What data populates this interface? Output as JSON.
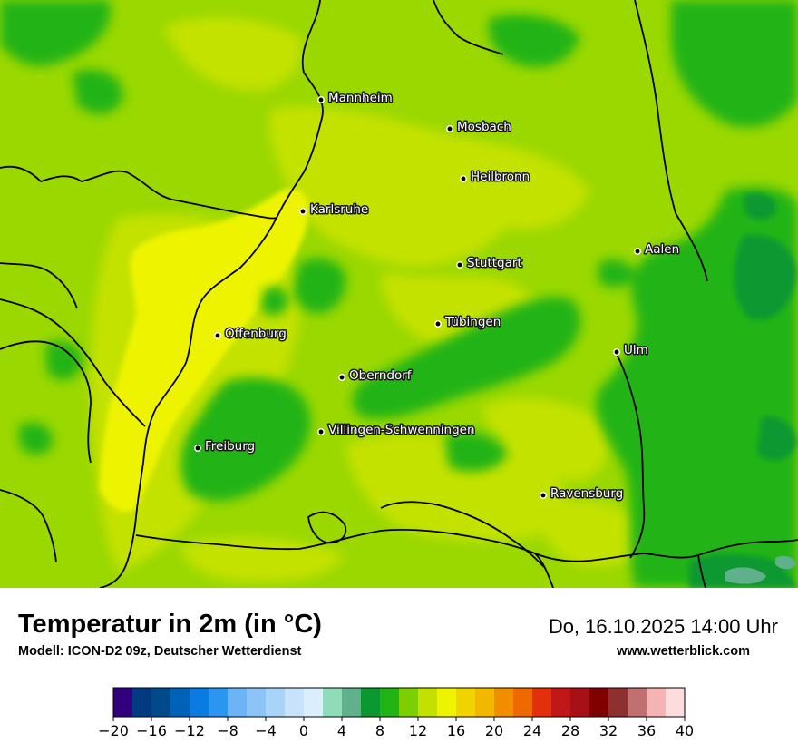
{
  "map": {
    "cities": [
      {
        "name": "Mannheim"
      },
      {
        "name": "Mosbach"
      },
      {
        "name": "Heilbronn"
      },
      {
        "name": "Karlsruhe"
      },
      {
        "name": "Aalen"
      },
      {
        "name": "Stuttgart"
      },
      {
        "name": "Tübingen"
      },
      {
        "name": "Offenburg"
      },
      {
        "name": "Ulm"
      },
      {
        "name": "Oberndorf"
      },
      {
        "name": "Villingen-Schwenningen"
      },
      {
        "name": "Freiburg"
      },
      {
        "name": "Ravensburg"
      }
    ]
  },
  "footer": {
    "title": "Temperatur in 2m (in °C)",
    "model": "Modell: ICON-D2 09z, Deutscher Wetterdienst",
    "datetime": "Do, 16.10.2025 14:00 Uhr",
    "website": "www.wetterblick.com"
  },
  "legend": {
    "min": -20,
    "max": 40,
    "step": 2,
    "tick_labels": [
      "−20",
      "−16",
      "−12",
      "−8",
      "−4",
      "0",
      "4",
      "8",
      "12",
      "16",
      "20",
      "24",
      "28",
      "32",
      "36",
      "40"
    ],
    "colors": [
      "#32007f",
      "#003b82",
      "#004a8c",
      "#0061b8",
      "#0a7be0",
      "#2a96f2",
      "#6cb4f5",
      "#8cc4f8",
      "#a8d4fa",
      "#c8e2fb",
      "#dbeefc",
      "#90dcb8",
      "#60b08c",
      "#0c9830",
      "#22b414",
      "#7ece04",
      "#c4e000",
      "#eef400",
      "#f0d400",
      "#f2b800",
      "#f18e00",
      "#ee6a00",
      "#e2300a",
      "#c01818",
      "#a81018",
      "#800000",
      "#8c3030",
      "#c07070",
      "#f4b4b4",
      "#fcdcdc"
    ]
  }
}
